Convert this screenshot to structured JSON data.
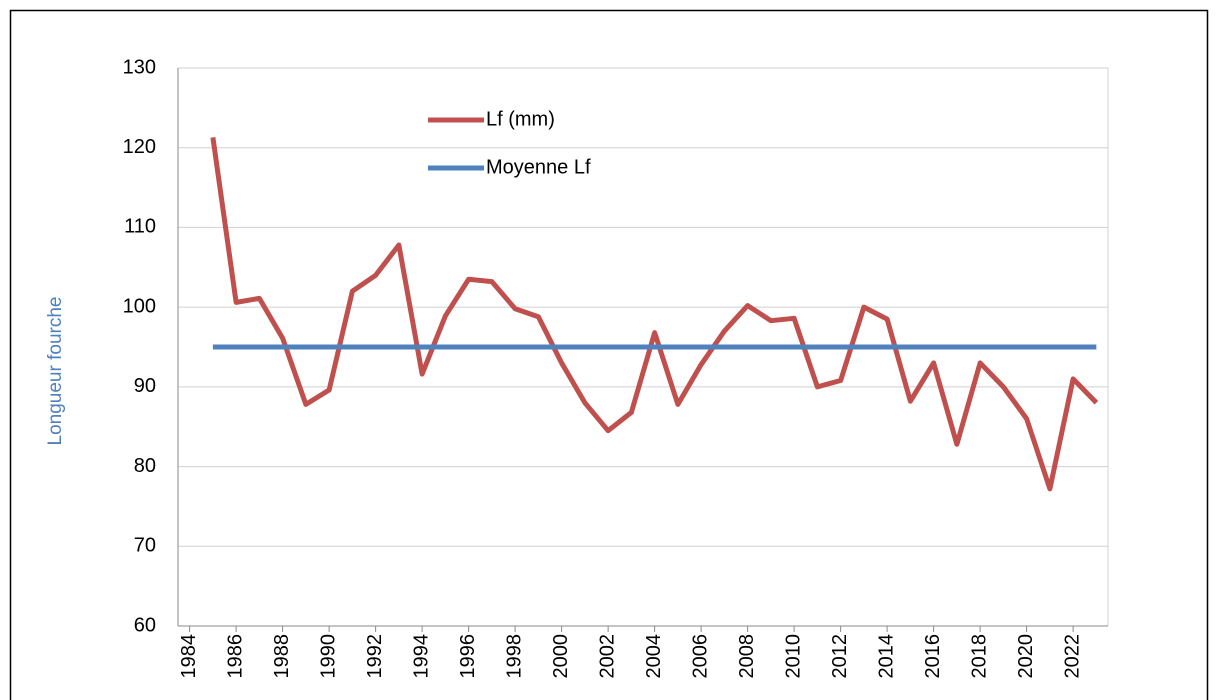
{
  "chart_data": {
    "type": "line",
    "y_label": "Longueur fourche",
    "x": [
      1985,
      1986,
      1987,
      1988,
      1989,
      1990,
      1991,
      1992,
      1993,
      1994,
      1995,
      1996,
      1997,
      1998,
      1999,
      2000,
      2001,
      2002,
      2003,
      2004,
      2005,
      2006,
      2007,
      2008,
      2009,
      2010,
      2011,
      2012,
      2013,
      2014,
      2015,
      2016,
      2017,
      2018,
      2019,
      2020,
      2021,
      2022,
      2023
    ],
    "series": [
      {
        "name": "Lf (mm)",
        "color": "#c0504d",
        "values": [
          121.3,
          100.6,
          101.1,
          96.1,
          87.8,
          89.6,
          102.0,
          104.0,
          107.8,
          91.6,
          98.9,
          103.5,
          103.2,
          99.8,
          98.8,
          93.0,
          88.0,
          84.5,
          86.8,
          96.8,
          87.8,
          92.8,
          97.0,
          100.2,
          98.3,
          98.6,
          90.0,
          90.8,
          100.0,
          98.5,
          88.2,
          93.0,
          82.8,
          93.0,
          90.0,
          86.0,
          77.2,
          91.0,
          88.0
        ]
      },
      {
        "name": "Moyenne Lf",
        "color": "#4f81bd",
        "values": [
          95,
          95,
          95,
          95,
          95,
          95,
          95,
          95,
          95,
          95,
          95,
          95,
          95,
          95,
          95,
          95,
          95,
          95,
          95,
          95,
          95,
          95,
          95,
          95,
          95,
          95,
          95,
          95,
          95,
          95,
          95,
          95,
          95,
          95,
          95,
          95,
          95,
          95,
          95
        ]
      }
    ],
    "xlim": [
      1983.5,
      2023.5
    ],
    "xticks": [
      1984,
      1986,
      1988,
      1990,
      1992,
      1994,
      1996,
      1998,
      2000,
      2002,
      2004,
      2006,
      2008,
      2010,
      2012,
      2014,
      2016,
      2018,
      2020,
      2022
    ],
    "ylim": [
      60,
      130
    ],
    "yticks": [
      60,
      70,
      80,
      90,
      100,
      110,
      120,
      130
    ],
    "grid": true,
    "legend": "top"
  }
}
